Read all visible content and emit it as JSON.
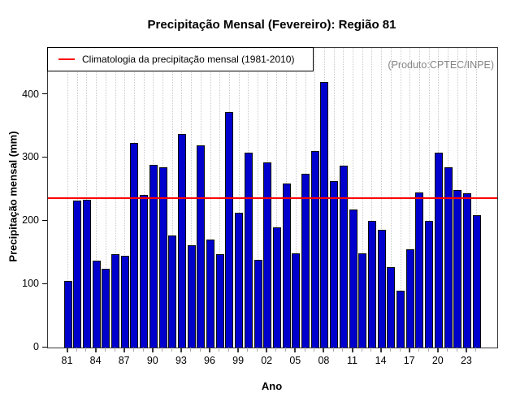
{
  "title": "Precipitação Mensal (Fevereiro): Região 81",
  "watermark": "(Produto:CPTEC/INPE)",
  "legend": {
    "label": "Climatologia da precipitação mensal (1981-2010)"
  },
  "chart_data": {
    "type": "bar",
    "title": "Precipitação Mensal (Fevereiro): Região 81",
    "xlabel": "Ano",
    "ylabel": "Precipitação mensal (mm)",
    "ylim": [
      0,
      474
    ],
    "yticks": [
      0,
      100,
      200,
      300,
      400
    ],
    "x_tick_labels": [
      "81",
      "84",
      "87",
      "90",
      "93",
      "96",
      "99",
      "02",
      "05",
      "08",
      "11",
      "14",
      "17",
      "20",
      "23"
    ],
    "x_label_every": 3,
    "grid": "vertical-dotted",
    "legend_position": "top-left",
    "bar_color": "#0000CD",
    "bar_border_color": "#0a0a0a",
    "climatology_line_color": "#FF0000",
    "climatology_value": 236,
    "years": [
      1981,
      1982,
      1983,
      1984,
      1985,
      1986,
      1987,
      1988,
      1989,
      1990,
      1991,
      1992,
      1993,
      1994,
      1995,
      1996,
      1997,
      1998,
      1999,
      2000,
      2001,
      2002,
      2003,
      2004,
      2005,
      2006,
      2007,
      2008,
      2009,
      2010,
      2011,
      2012,
      2013,
      2014,
      2015,
      2016,
      2017,
      2018,
      2019,
      2020,
      2021,
      2022,
      2023,
      2024
    ],
    "values": [
      105,
      232,
      234,
      137,
      125,
      148,
      145,
      324,
      242,
      289,
      285,
      177,
      338,
      162,
      320,
      171,
      148,
      372,
      213,
      308,
      139,
      293,
      190,
      260,
      149,
      275,
      311,
      420,
      263,
      288,
      219,
      149,
      201,
      186,
      127,
      90,
      156,
      246,
      201,
      308,
      285,
      249,
      244,
      209
    ]
  }
}
